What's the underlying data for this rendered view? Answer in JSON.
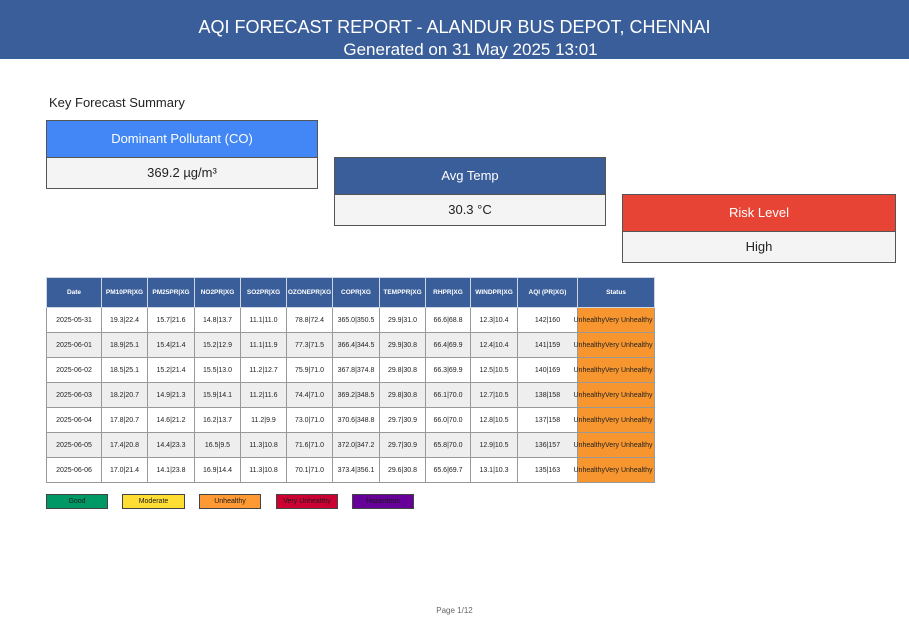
{
  "header": {
    "title": "AQI FORECAST REPORT - ALANDUR BUS DEPOT, CHENNAI",
    "subtitle": "Generated on 31 May 2025 13:01"
  },
  "summary": {
    "title": "Key Forecast Summary",
    "cards": [
      {
        "label": "Dominant Pollutant (CO)",
        "value": "369.2 µg/m³",
        "color": "#4287f5"
      },
      {
        "label": "Avg Temp",
        "value": "30.3 °C",
        "color": "#3a5e99"
      },
      {
        "label": "Risk Level",
        "value": "High",
        "color": "#e84435"
      }
    ]
  },
  "table": {
    "headers": [
      "Date",
      "PM10PR|XG",
      "PM25PR|XG",
      "NO2PR|XG",
      "SO2PR|XG",
      "OZONEPR|XG",
      "COPR|XG",
      "TEMPPR|XG",
      "RHPR|XG",
      "WINDPR|XG",
      "AQI (PR|XG)",
      "Status"
    ],
    "rows": [
      [
        "2025-05-31",
        "19.3|22.4",
        "15.7|21.6",
        "14.8|13.7",
        "11.1|11.0",
        "78.8|72.4",
        "365.0|350.5",
        "29.9|31.0",
        "66.6|68.8",
        "12.3|10.4",
        "142|160",
        "UnhealthyVery Unhealthy"
      ],
      [
        "2025-06-01",
        "18.9|25.1",
        "15.4|21.4",
        "15.2|12.9",
        "11.1|11.9",
        "77.3|71.5",
        "366.4|344.5",
        "29.9|30.8",
        "66.4|69.9",
        "12.4|10.4",
        "141|159",
        "UnhealthyVery Unhealthy"
      ],
      [
        "2025-06-02",
        "18.5|25.1",
        "15.2|21.4",
        "15.5|13.0",
        "11.2|12.7",
        "75.9|71.0",
        "367.8|374.8",
        "29.8|30.8",
        "66.3|69.9",
        "12.5|10.5",
        "140|169",
        "UnhealthyVery Unhealthy"
      ],
      [
        "2025-06-03",
        "18.2|20.7",
        "14.9|21.3",
        "15.9|14.1",
        "11.2|11.6",
        "74.4|71.0",
        "369.2|348.5",
        "29.8|30.8",
        "66.1|70.0",
        "12.7|10.5",
        "138|158",
        "UnhealthyVery Unhealthy"
      ],
      [
        "2025-06-04",
        "17.8|20.7",
        "14.6|21.2",
        "16.2|13.7",
        "11.2|9.9",
        "73.0|71.0",
        "370.6|348.8",
        "29.7|30.9",
        "66.0|70.0",
        "12.8|10.5",
        "137|158",
        "UnhealthyVery Unhealthy"
      ],
      [
        "2025-06-05",
        "17.4|20.8",
        "14.4|23.3",
        "16.5|9.5",
        "11.3|10.8",
        "71.6|71.0",
        "372.0|347.2",
        "29.7|30.9",
        "65.8|70.0",
        "12.9|10.5",
        "136|157",
        "UnhealthyVery Unhealthy"
      ],
      [
        "2025-06-06",
        "17.0|21.4",
        "14.1|23.8",
        "16.9|14.4",
        "11.3|10.8",
        "70.1|71.0",
        "373.4|356.1",
        "29.6|30.8",
        "65.6|69.7",
        "13.1|10.3",
        "135|163",
        "UnhealthyVery Unhealthy"
      ]
    ],
    "status_color": "#f7962f"
  },
  "legend": [
    {
      "label": "Good",
      "color": "#009966"
    },
    {
      "label": "Moderate",
      "color": "#ffde33"
    },
    {
      "label": "Unhealthy",
      "color": "#ff9933"
    },
    {
      "label": "Very Unhealthy",
      "color": "#cc0033"
    },
    {
      "label": "Hazardous",
      "color": "#660099"
    }
  ],
  "footer": {
    "page": "Page 1/12"
  }
}
